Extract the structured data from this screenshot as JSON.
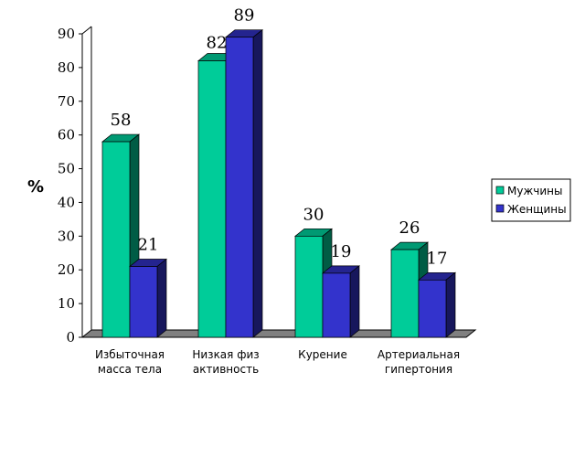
{
  "chart_data": {
    "type": "bar",
    "title": "",
    "xlabel": "",
    "ylabel": "%",
    "ylim": [
      0,
      90
    ],
    "yticks": [
      "0",
      "10",
      "20",
      "30",
      "40",
      "50",
      "60",
      "70",
      "80",
      "90"
    ],
    "categories": [
      [
        "Избыточная",
        "масса тела"
      ],
      [
        "Низкая физ",
        "активность"
      ],
      [
        "Курение"
      ],
      [
        "Артериальная",
        "гипертония"
      ]
    ],
    "series": [
      {
        "name": "Мужчины",
        "values": [
          58,
          82,
          30,
          26
        ],
        "color": "#00cc99"
      },
      {
        "name": "Женщины",
        "values": [
          21,
          89,
          19,
          17
        ],
        "color": "#3333cc"
      }
    ],
    "legend": "right",
    "grid": false,
    "style": "3d"
  }
}
